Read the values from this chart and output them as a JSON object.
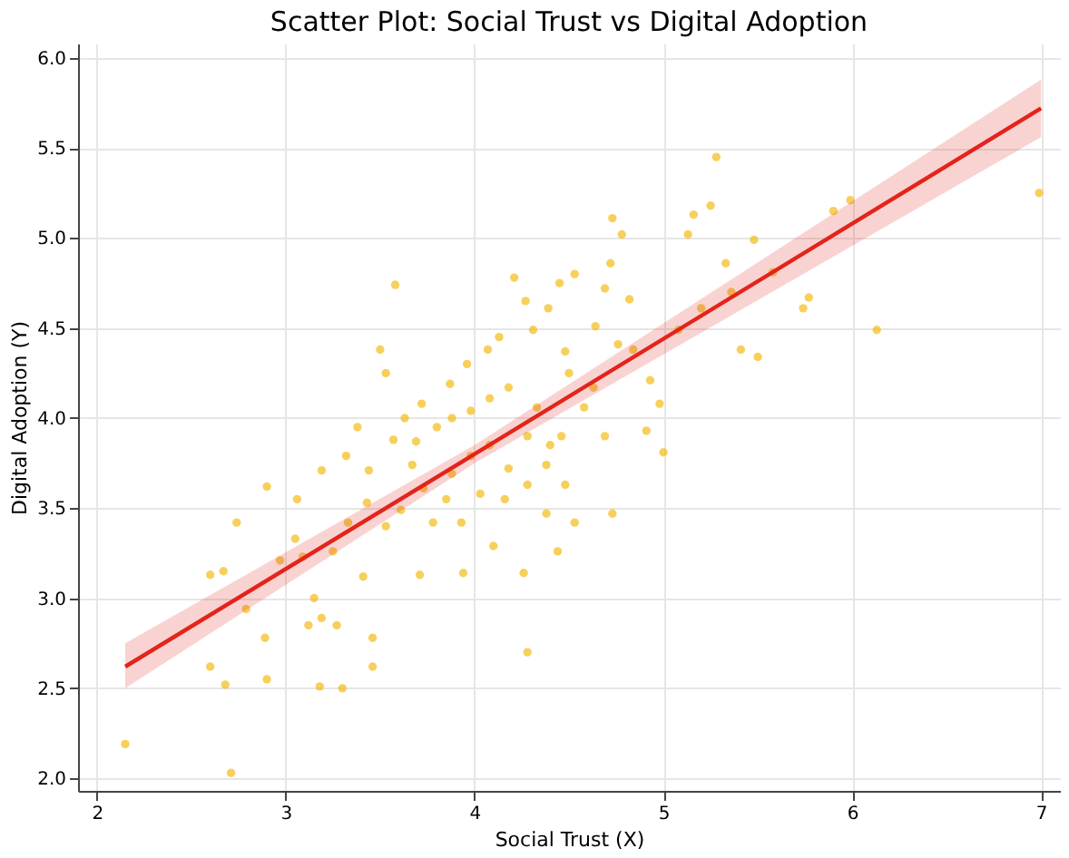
{
  "chart_data": {
    "type": "scatter",
    "title": "Scatter Plot: Social Trust vs Digital Adoption",
    "xlabel": "Social Trust (X)",
    "ylabel": "Digital Adoption (Y)",
    "xlim": [
      1.9,
      7.1
    ],
    "ylim": [
      1.93,
      6.08
    ],
    "xticks": [
      2,
      3,
      4,
      5,
      6,
      7
    ],
    "yticks": [
      {
        "value": 2,
        "label": "2.0"
      },
      2.5,
      {
        "value": 3,
        "label": "3.0"
      },
      3.5,
      {
        "value": 4,
        "label": "4.0"
      },
      4.5,
      {
        "value": 5,
        "label": "5.0"
      },
      5.5,
      {
        "value": 6,
        "label": "6.0"
      }
    ],
    "grid": true,
    "series": [
      {
        "type": "scatter",
        "color": "#f2b705",
        "marker": "circle",
        "x": [
          2.15,
          2.71,
          2.6,
          2.68,
          2.9,
          2.89,
          2.67,
          2.6,
          2.79,
          2.9,
          3.12,
          3.19,
          3.27,
          3.18,
          3.3,
          3.46,
          3.46,
          3.15,
          3.25,
          3.41,
          3.05,
          3.09,
          3.06,
          3.19,
          3.32,
          3.38,
          3.44,
          3.57,
          3.58,
          3.67,
          3.73,
          3.69,
          3.61,
          3.53,
          3.71,
          3.94,
          3.93,
          4.16,
          4.26,
          4.28,
          4.1,
          3.98,
          3.87,
          3.96,
          4.07,
          4.13,
          4.21,
          4.27,
          4.31,
          4.33,
          4.39,
          4.48,
          4.5,
          4.64,
          4.69,
          4.72,
          4.73,
          4.82,
          4.76,
          4.93,
          4.98,
          4.91,
          5.0,
          4.69,
          4.58,
          4.46,
          4.38,
          4.28,
          4.18,
          4.08,
          3.98,
          3.88,
          3.8,
          3.72,
          3.53,
          3.5,
          3.85,
          4.03,
          4.38,
          4.48,
          4.28,
          5.13,
          5.16,
          5.25,
          5.28,
          5.33,
          5.36,
          5.48,
          5.41,
          5.5,
          5.58,
          5.74,
          5.77,
          5.9,
          5.99,
          6.13,
          6.99,
          5.2,
          5.08,
          4.84,
          4.53,
          4.45,
          4.78,
          4.63,
          4.18,
          4.08,
          3.88,
          3.63,
          3.43,
          3.33,
          2.74,
          2.97,
          3.78,
          4.44,
          4.53,
          4.73,
          4.4
        ],
        "values": [
          2.19,
          2.03,
          2.62,
          2.52,
          2.55,
          2.78,
          3.15,
          3.13,
          2.94,
          3.62,
          2.85,
          2.89,
          2.85,
          2.51,
          2.5,
          2.78,
          2.62,
          3.0,
          3.26,
          3.12,
          3.33,
          3.23,
          3.55,
          3.71,
          3.79,
          3.95,
          3.71,
          3.88,
          4.74,
          3.74,
          3.61,
          3.87,
          3.49,
          3.4,
          3.13,
          3.14,
          3.42,
          3.55,
          3.14,
          2.7,
          3.29,
          4.04,
          4.19,
          4.3,
          4.38,
          4.45,
          4.78,
          4.65,
          4.49,
          4.06,
          4.61,
          4.37,
          4.25,
          4.51,
          4.72,
          4.86,
          5.11,
          4.66,
          4.41,
          4.21,
          4.08,
          3.93,
          3.81,
          3.9,
          4.06,
          3.9,
          3.74,
          3.9,
          3.72,
          3.85,
          3.79,
          3.69,
          3.95,
          4.08,
          4.25,
          4.38,
          3.55,
          3.58,
          3.47,
          3.63,
          3.63,
          5.02,
          5.13,
          5.18,
          5.45,
          4.86,
          4.7,
          4.99,
          4.38,
          4.34,
          4.81,
          4.61,
          4.67,
          5.15,
          5.21,
          4.49,
          5.25,
          4.61,
          4.49,
          4.38,
          4.8,
          4.75,
          5.02,
          4.17,
          4.17,
          4.11,
          4.0,
          4.0,
          3.53,
          3.42,
          3.42,
          3.21,
          3.42,
          3.26,
          3.42,
          3.47,
          3.85
        ]
      },
      {
        "type": "line",
        "color": "#e3241b",
        "x": [
          2.15,
          4.0,
          7.0
        ],
        "values": [
          2.62,
          3.8,
          5.72
        ],
        "lower": [
          2.5,
          3.75,
          5.56
        ],
        "upper": [
          2.75,
          3.85,
          5.88
        ]
      }
    ]
  }
}
